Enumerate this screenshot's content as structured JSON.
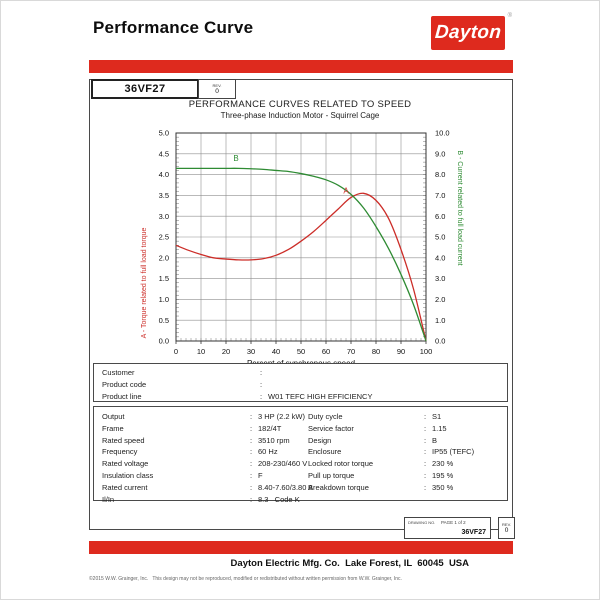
{
  "separator": ":",
  "colors": {
    "brand_red": "#de2a1e",
    "torque_red": "#cc2d28",
    "current_green": "#2e8b33"
  },
  "header": {
    "title": "Performance Curve",
    "logo_text": "Dayton",
    "logo_reg": "®"
  },
  "title_block": {
    "model": "36VF27",
    "rev_label": "REV.",
    "rev_value": "0"
  },
  "chart_data": {
    "type": "line",
    "title": "PERFORMANCE CURVES RELATED TO SPEED",
    "subtitle": "Three-phase Induction Motor - Squirrel Cage",
    "xlabel": "Percent of synchronous speed",
    "xlim": [
      0,
      100
    ],
    "x_ticks": [
      0,
      10,
      20,
      30,
      40,
      50,
      60,
      70,
      80,
      90,
      100
    ],
    "grid": true,
    "left_axis": {
      "label": "A - Torque related to full load torque",
      "color": "#cc2d28",
      "lim": [
        0,
        5
      ],
      "ticks": [
        0.0,
        0.5,
        1.0,
        1.5,
        2.0,
        2.5,
        3.0,
        3.5,
        4.0,
        4.5,
        5.0
      ]
    },
    "right_axis": {
      "label": "B - Current related to full load current",
      "color": "#2e8b33",
      "lim": [
        0,
        10
      ],
      "ticks": [
        0.0,
        1.0,
        2.0,
        3.0,
        4.0,
        5.0,
        6.0,
        7.0,
        8.0,
        9.0,
        10.0
      ]
    },
    "series": [
      {
        "name": "A",
        "axis": "left",
        "color": "#cc2d28",
        "x": [
          0,
          5,
          10,
          15,
          20,
          25,
          30,
          35,
          40,
          45,
          50,
          55,
          60,
          65,
          70,
          75,
          80,
          85,
          90,
          95,
          100
        ],
        "y": [
          2.3,
          2.18,
          2.08,
          2.0,
          1.97,
          1.95,
          1.95,
          1.98,
          2.06,
          2.2,
          2.4,
          2.63,
          2.9,
          3.18,
          3.45,
          3.55,
          3.38,
          2.95,
          2.2,
          1.25,
          0.0
        ]
      },
      {
        "name": "B",
        "axis": "right",
        "color": "#2e8b33",
        "x": [
          0,
          5,
          10,
          15,
          20,
          25,
          30,
          35,
          40,
          45,
          50,
          55,
          60,
          65,
          70,
          75,
          80,
          85,
          90,
          95,
          100
        ],
        "y": [
          8.3,
          8.3,
          8.3,
          8.3,
          8.3,
          8.3,
          8.28,
          8.25,
          8.2,
          8.15,
          8.05,
          7.92,
          7.75,
          7.48,
          7.05,
          6.4,
          5.5,
          4.45,
          3.2,
          1.75,
          0.0
        ]
      }
    ],
    "annotations": [
      {
        "text": "A",
        "x": 68,
        "y": 3.55,
        "axis": "left",
        "color": "#cc2d28"
      },
      {
        "text": "B",
        "x": 24,
        "y": 8.65,
        "axis": "right",
        "color": "#2e8b33"
      }
    ]
  },
  "customer": {
    "rows": [
      {
        "label": "Customer",
        "value": ""
      },
      {
        "label": "Product code",
        "value": ""
      },
      {
        "label": "Product line",
        "value": "W01 TEFC HIGH EFFICIENCY"
      }
    ]
  },
  "specs": {
    "left": [
      {
        "label": "Output",
        "value": "3 HP (2.2 kW)"
      },
      {
        "label": "Frame",
        "value": "182/4T"
      },
      {
        "label": "Rated speed",
        "value": "3510 rpm"
      },
      {
        "label": "Frequency",
        "value": "60 Hz"
      },
      {
        "label": "Rated voltage",
        "value": "208-230/460 V"
      },
      {
        "label": "Insulation class",
        "value": "F"
      },
      {
        "label": "Rated current",
        "value": "8.40-7.60/3.80 A"
      },
      {
        "label": "Il/In",
        "value": "8.3   Code K"
      }
    ],
    "right": [
      {
        "label": "Duty cycle",
        "value": "S1"
      },
      {
        "label": "Service factor",
        "value": "1.15"
      },
      {
        "label": "Design",
        "value": "B"
      },
      {
        "label": "Enclosure",
        "value": "IP55 (TEFC)"
      },
      {
        "label": "Locked rotor torque",
        "value": "230 %"
      },
      {
        "label": "Pull up torque",
        "value": "195 %"
      },
      {
        "label": "Breakdown torque",
        "value": "350 %"
      }
    ]
  },
  "drawing_block": {
    "drawing_no_label": "DRAWING NO.",
    "page_label": "PAGE 1 of 2",
    "model": "36VF27",
    "rev_label": "REV.",
    "rev_value": "0"
  },
  "footer": {
    "company_line": "Dayton Electric Mfg. Co.  Lake Forest, IL  60045  USA",
    "copyright": "©2015 W.W. Grainger, Inc.   This design may not be reproduced, modified or redistributed without written permission from W.W. Grainger, Inc."
  }
}
